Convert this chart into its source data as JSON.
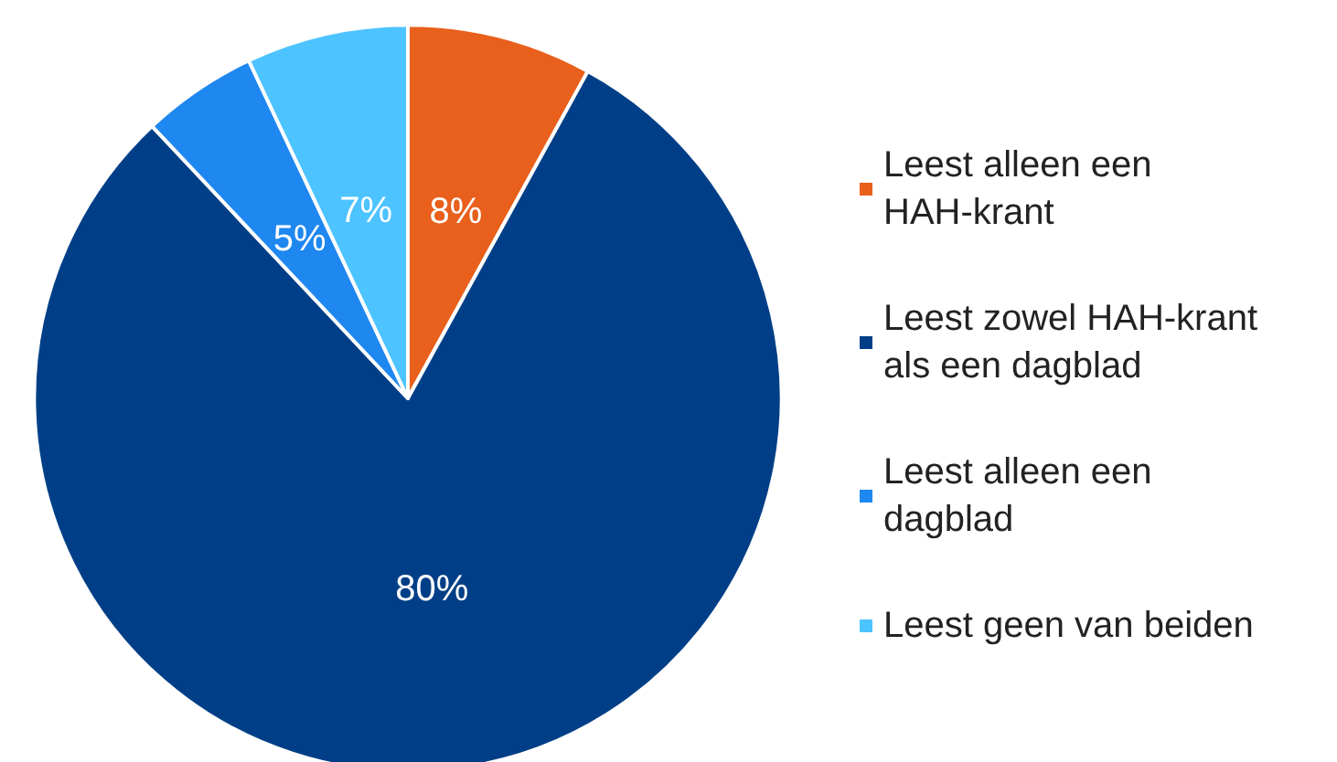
{
  "chart_data": {
    "type": "pie",
    "categories": [
      "Leest alleen een HAH-krant",
      "Leest zowel HAH-krant als een dagblad",
      "Leest alleen een dagblad",
      "Leest geen van beiden"
    ],
    "values": [
      8,
      80,
      5,
      7
    ],
    "colors": [
      "#e8601c",
      "#003f87",
      "#1f87f0",
      "#4dc3ff"
    ],
    "value_labels": [
      "8%",
      "80%",
      "5%",
      "7%"
    ],
    "legend": "right"
  }
}
